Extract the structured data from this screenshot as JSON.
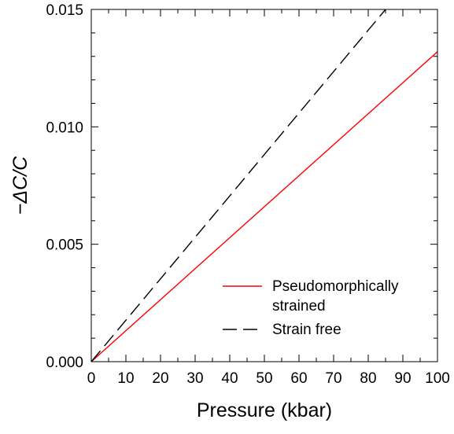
{
  "chart_data": {
    "type": "line",
    "xlabel": "Pressure (kbar)",
    "ylabel": "−ΔC/C",
    "xlim": [
      0,
      100
    ],
    "ylim": [
      0,
      0.015
    ],
    "x_ticks": [
      "0",
      "10",
      "20",
      "30",
      "40",
      "50",
      "60",
      "70",
      "80",
      "90",
      "100"
    ],
    "y_ticks": [
      "0.000",
      "0.005",
      "0.010",
      "0.015"
    ],
    "grid": false,
    "legend_position": "bottom-right",
    "series": [
      {
        "name": "Pseudomorphically strained",
        "name_lines": [
          "Pseudomorphically",
          "strained"
        ],
        "color": "#ff0000",
        "style": "solid",
        "x": [
          0,
          100
        ],
        "y": [
          0,
          0.0132
        ]
      },
      {
        "name": "Strain free",
        "name_lines": [
          "Strain free"
        ],
        "color": "#000000",
        "style": "dashed",
        "x": [
          0,
          85
        ],
        "y": [
          0,
          0.015
        ]
      }
    ]
  }
}
